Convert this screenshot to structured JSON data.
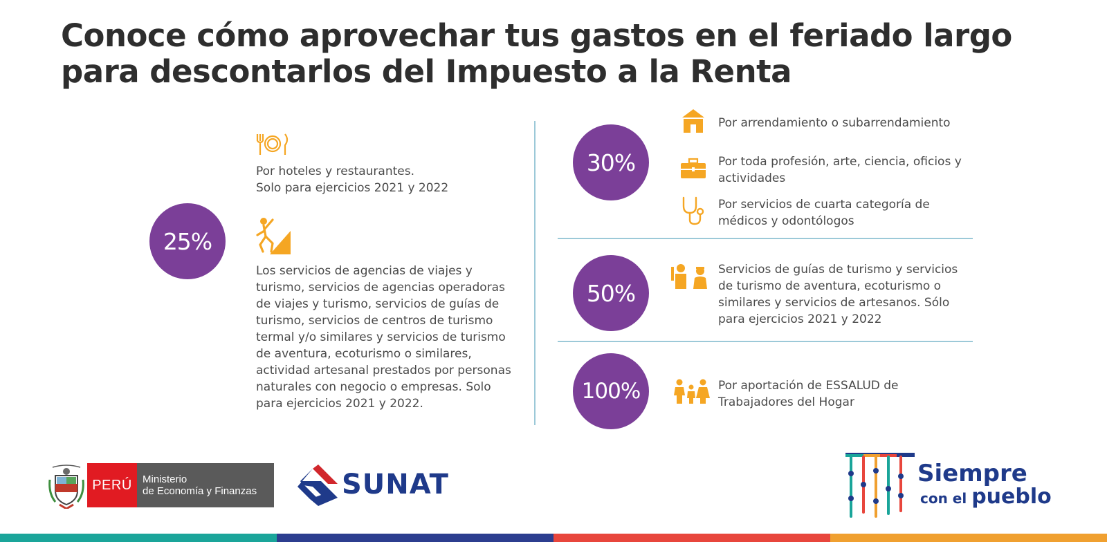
{
  "headline": {
    "line1": "Conoce cómo aprovechar tus gastos en el feriado largo",
    "line2": "para descontarlos del Impuesto a la Renta"
  },
  "left": {
    "percent": "25%",
    "item1": {
      "icon": "restaurant-icon",
      "lines": [
        "Por hoteles y restaurantes.",
        "Solo para ejercicios 2021 y 2022"
      ]
    },
    "item2": {
      "icon": "climber-icon",
      "lines": [
        "Los servicios de agencias de viajes y",
        "turismo, servicios de agencias operadoras",
        "de viajes y turismo, servicios de guías de",
        "turismo, servicios de centros de turismo",
        "termal y/o similares y servicios de turismo",
        "de aventura, ecoturismo o similares,",
        "actividad artesanal prestados por personas",
        "naturales con negocio o empresas. Solo",
        "para ejercicios 2021 y 2022."
      ]
    }
  },
  "right": {
    "group30": {
      "percent": "30%",
      "items": [
        {
          "icon": "house-icon",
          "lines": [
            "Por arrendamiento o subarrendamiento"
          ]
        },
        {
          "icon": "briefcase-icon",
          "lines": [
            "Por toda profesión, arte, ciencia, oficios y",
            "actividades"
          ]
        },
        {
          "icon": "stethoscope-icon",
          "lines": [
            "Por servicios de cuarta categoría de",
            "médicos y odontólogos"
          ]
        }
      ]
    },
    "group50": {
      "percent": "50%",
      "icon": "tour-guide-icon",
      "lines": [
        "Servicios de guías de turismo y servicios",
        "de turismo de aventura, ecoturismo o",
        "similares y servicios de artesanos. Sólo",
        "para ejercicios 2021 y 2022"
      ]
    },
    "group100": {
      "percent": "100%",
      "icon": "family-icon",
      "lines": [
        "Por aportación de ESSALUD de",
        "Trabajadores del Hogar"
      ]
    }
  },
  "footer": {
    "mef": {
      "country": "PERÚ",
      "line1": "Ministerio",
      "line2": "de Economía y Finanzas"
    },
    "sunat": "SUNAT",
    "bicentenario": {
      "line1": "Siempre",
      "line2a": "con el",
      "line2b": "pueblo"
    }
  },
  "colors": {
    "purple": "#7b3f98",
    "orange": "#f5a623",
    "divider": "#9cc9d8",
    "bar": [
      "#1aa59a",
      "#2c3e8f",
      "#e8463c",
      "#f0a030"
    ]
  }
}
